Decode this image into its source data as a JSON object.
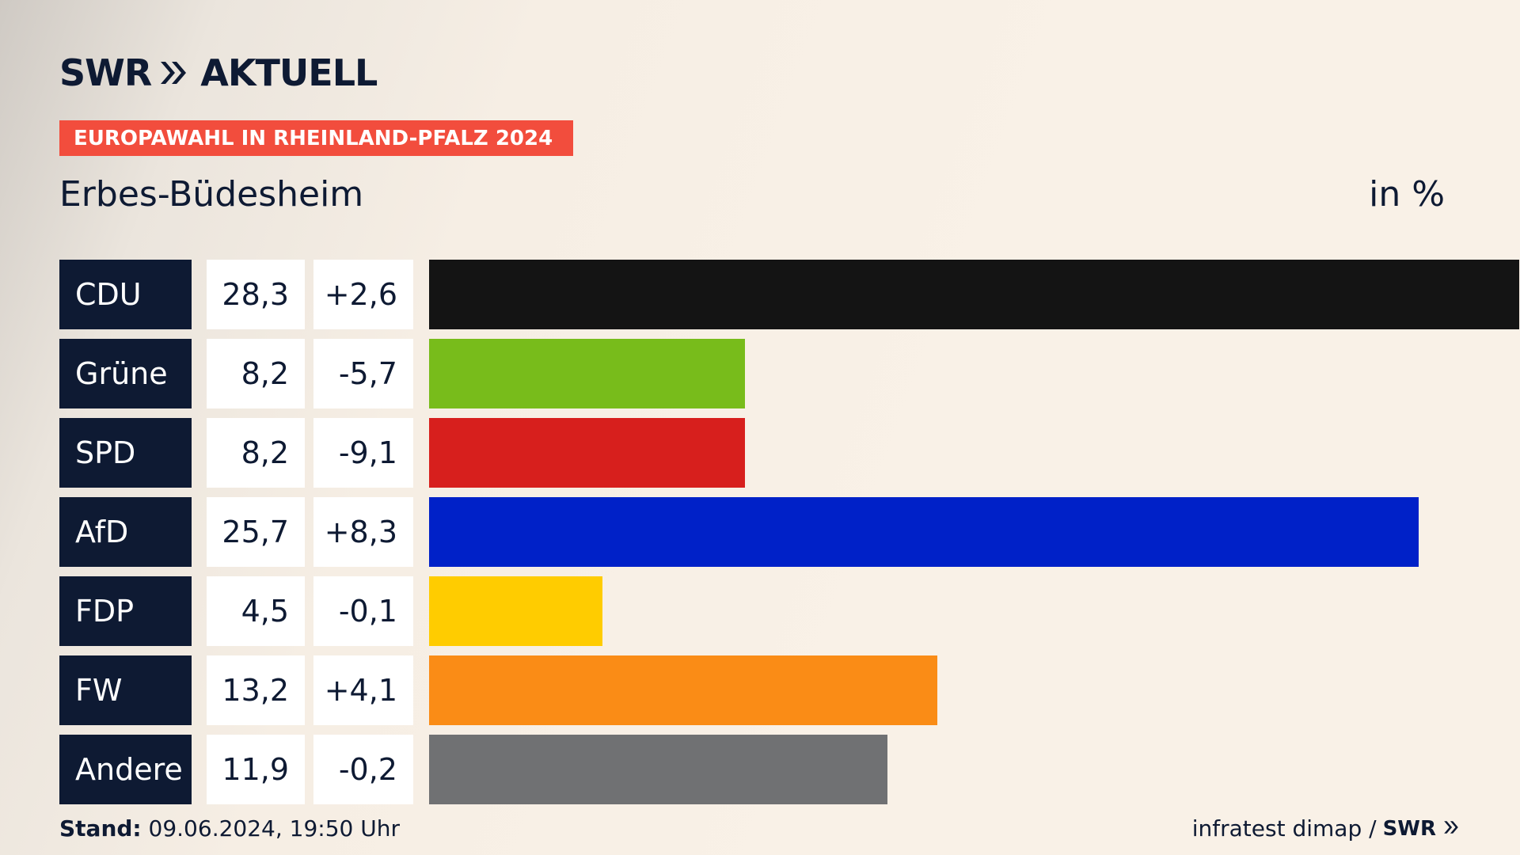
{
  "brand": {
    "logo_left": "SWR",
    "logo_right": "AKTUELL",
    "footer_logo": "SWR"
  },
  "banner": "EUROPAWAHL IN RHEINLAND-PFALZ 2024",
  "place": "Erbes-Büdesheim",
  "unit": "in %",
  "footer": {
    "stand_label": "Stand:",
    "stand_value": "09.06.2024, 19:50 Uhr",
    "source": "infratest dimap /"
  },
  "chart_data": {
    "type": "bar",
    "orientation": "horizontal",
    "categories": [
      "CDU",
      "Grüne",
      "SPD",
      "AfD",
      "FDP",
      "FW",
      "Andere"
    ],
    "values": [
      28.3,
      8.2,
      8.2,
      25.7,
      4.5,
      13.2,
      11.9
    ],
    "labels": [
      "28,3",
      "8,2",
      "8,2",
      "25,7",
      "4,5",
      "13,2",
      "11,9"
    ],
    "diffs": [
      "+2,6",
      "-5,7",
      "-9,1",
      "+8,3",
      "-0,1",
      "+4,1",
      "-0,2"
    ],
    "colors": [
      "#141414",
      "#78bc1b",
      "#d71f1d",
      "#0021c8",
      "#ffcc00",
      "#fa8c16",
      "#707173"
    ],
    "xlim": [
      0,
      28.3
    ]
  }
}
